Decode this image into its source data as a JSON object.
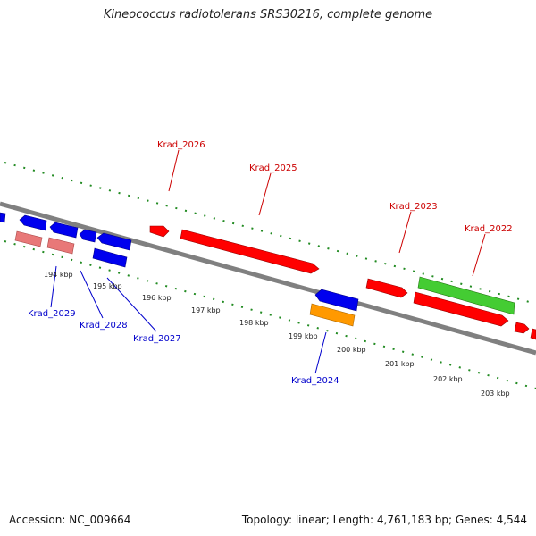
{
  "title": "Kineococcus radiotolerans SRS30216, complete genome",
  "footer": {
    "accession": "Accession: NC_009664",
    "stats": "Topology: linear; Length: 4,761,183 bp; Genes: 4,544"
  },
  "colors": {
    "forward_gene": "#ff0000",
    "reverse_gene": "#0000ee",
    "pseudo_gene": "#e87878",
    "rna_gene": "#ff9900",
    "other_gene": "#44cc33",
    "backbone": "#808080",
    "ticks": "#228b22"
  },
  "ticks": [
    "194 kbp",
    "195 kbp",
    "196 kbp",
    "197 kbp",
    "198 kbp",
    "199 kbp",
    "200 kbp",
    "201 kbp",
    "202 kbp",
    "203 kbp"
  ],
  "gene_labels_top": [
    "Krad_2026",
    "Krad_2025",
    "Krad_2023",
    "Krad_2022"
  ],
  "gene_labels_bottom": [
    "Krad_2029",
    "Krad_2028",
    "Krad_2027",
    "Krad_2024"
  ]
}
